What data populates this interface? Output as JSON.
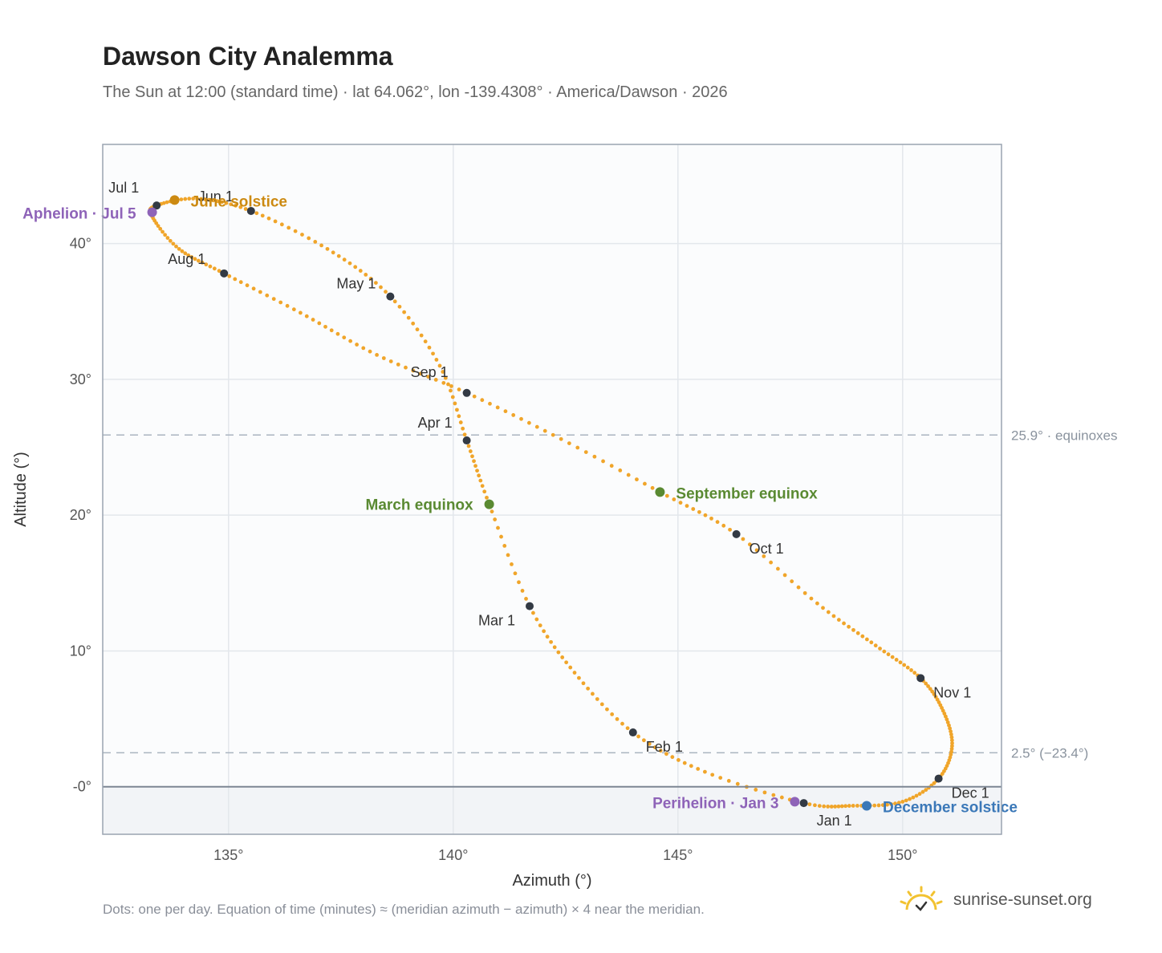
{
  "header": {
    "title": "Dawson City Analemma",
    "subtitle": "The Sun at 12:00 (standard time) · lat 64.062°, lon -139.4308° · America/Dawson · 2026"
  },
  "footer": {
    "note": "Dots: one per day. Equation of time (minutes) ≈ (meridian azimuth − azimuth) × 4 near the meridian.",
    "brand": "sunrise-sunset.org"
  },
  "colors": {
    "curve": "#f0a52a",
    "month_dot": "#333a44",
    "solstice_june": "#cc8a12",
    "solstice_dec": "#3b78b8",
    "equinox": "#5a8a32",
    "apsis": "#8e63b8",
    "grid": "#e3e7ec",
    "refline": "#aab4c0",
    "below_horizon": "#f2f4f7"
  },
  "chart_data": {
    "type": "scatter",
    "xlabel": "Azimuth (°)",
    "ylabel": "Altitude (°)",
    "xlim": [
      132.2,
      152.2
    ],
    "ylim": [
      -3.5,
      47.3
    ],
    "xticks": [
      135,
      140,
      145,
      150
    ],
    "xtick_labels": [
      "135°",
      "140°",
      "145°",
      "150°"
    ],
    "yticks": [
      0,
      10,
      20,
      30,
      40
    ],
    "ytick_labels": [
      "-0°",
      "10°",
      "20°",
      "30°",
      "40°"
    ],
    "grid": true,
    "horizon_altitude": 0,
    "reference_lines": [
      {
        "y": 25.9,
        "label": "25.9° · equinoxes"
      },
      {
        "y": 2.5,
        "label": "2.5° (−23.4°)"
      }
    ],
    "month_points": [
      {
        "label": "Jan 1",
        "x": 147.8,
        "y": -1.2
      },
      {
        "label": "Feb 1",
        "x": 144.0,
        "y": 4.0
      },
      {
        "label": "Mar 1",
        "x": 141.7,
        "y": 13.3
      },
      {
        "label": "Apr 1",
        "x": 140.3,
        "y": 25.5
      },
      {
        "label": "May 1",
        "x": 138.6,
        "y": 36.1
      },
      {
        "label": "Jun 1",
        "x": 135.5,
        "y": 42.4
      },
      {
        "label": "Jul 1",
        "x": 133.4,
        "y": 42.8
      },
      {
        "label": "Aug 1",
        "x": 134.9,
        "y": 37.8
      },
      {
        "label": "Sep 1",
        "x": 140.3,
        "y": 29.0
      },
      {
        "label": "Oct 1",
        "x": 146.3,
        "y": 18.6
      },
      {
        "label": "Nov 1",
        "x": 150.4,
        "y": 8.0
      },
      {
        "label": "Dec 1",
        "x": 150.8,
        "y": 0.6
      }
    ],
    "events": [
      {
        "label": "June solstice",
        "x": 133.8,
        "y": 43.2,
        "kind": "solstice_june"
      },
      {
        "label": "December solstice",
        "x": 149.2,
        "y": -1.4,
        "kind": "solstice_dec"
      },
      {
        "label": "March equinox",
        "x": 140.8,
        "y": 20.8,
        "kind": "equinox"
      },
      {
        "label": "September equinox",
        "x": 144.6,
        "y": 21.7,
        "kind": "equinox"
      },
      {
        "label": "Aphelion · Jul 5",
        "x": 133.3,
        "y": 42.3,
        "kind": "apsis"
      },
      {
        "label": "Perihelion · Jan 3",
        "x": 147.6,
        "y": -1.1,
        "kind": "apsis"
      }
    ],
    "path": [
      [
        147.8,
        -1.2
      ],
      [
        148.9,
        -1.4
      ],
      [
        150.0,
        -1.1
      ],
      [
        150.8,
        0.6
      ],
      [
        151.1,
        3.0
      ],
      [
        150.9,
        5.6
      ],
      [
        150.4,
        8.0
      ],
      [
        149.4,
        10.4
      ],
      [
        148.1,
        13.5
      ],
      [
        146.3,
        18.6
      ],
      [
        144.6,
        21.7
      ],
      [
        142.4,
        25.6
      ],
      [
        140.3,
        29.0
      ],
      [
        138.3,
        31.8
      ],
      [
        136.6,
        34.9
      ],
      [
        134.9,
        37.8
      ],
      [
        133.9,
        39.6
      ],
      [
        133.3,
        42.0
      ],
      [
        133.4,
        42.8
      ],
      [
        134.3,
        43.3
      ],
      [
        135.5,
        42.4
      ],
      [
        137.2,
        39.6
      ],
      [
        138.6,
        36.1
      ],
      [
        139.7,
        31.0
      ],
      [
        140.3,
        25.5
      ],
      [
        140.8,
        20.8
      ],
      [
        141.7,
        13.3
      ],
      [
        142.7,
        8.4
      ],
      [
        144.0,
        4.0
      ],
      [
        145.6,
        1.1
      ],
      [
        147.8,
        -1.2
      ]
    ]
  }
}
